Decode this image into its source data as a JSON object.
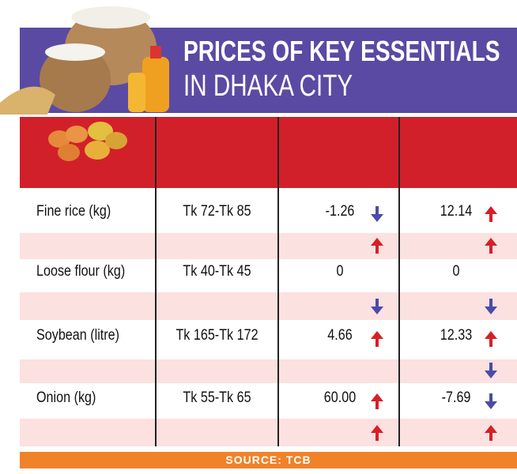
{
  "header": {
    "title_line1": "PRICES OF KEY ESSENTIALS",
    "title_line2": "IN DHAKA CITY"
  },
  "table": {
    "rows": [
      [
        "Fine rice (kg)",
        "Tk 72-Tk 85",
        "-1.26",
        "12.14"
      ],
      [
        "Loose flour (kg)",
        "Tk 40-Tk 45",
        "0",
        "0"
      ],
      [
        "Soybean (litre)",
        "Tk 165-Tk 172",
        "4.66",
        "12.33"
      ],
      [
        "Onion (kg)",
        "Tk 55-Tk 65",
        "60.00",
        "-7.69"
      ]
    ]
  },
  "footer": {
    "source": "SOURCE: TCB"
  }
}
